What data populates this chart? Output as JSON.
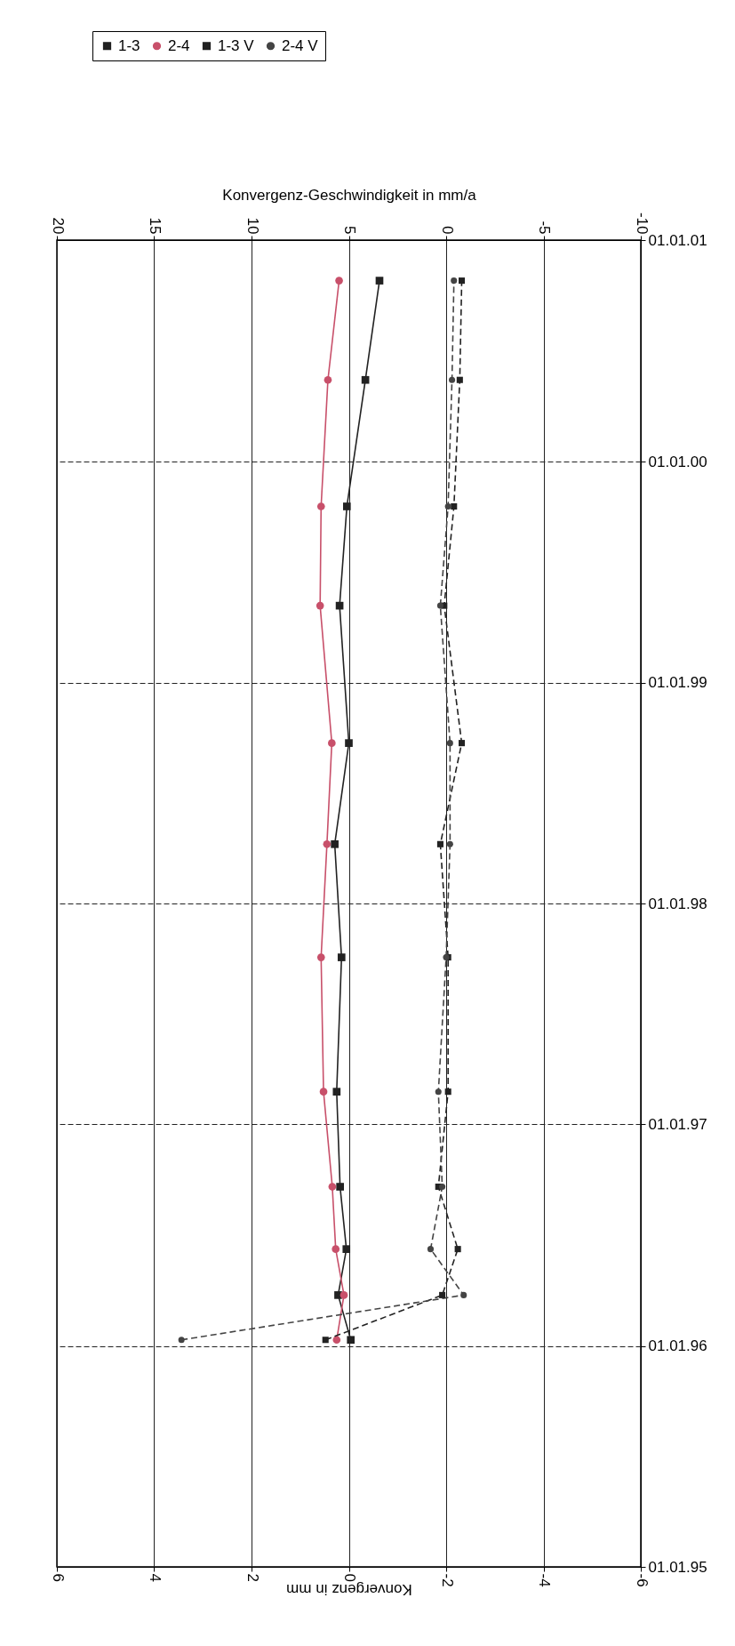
{
  "chart_data": {
    "type": "line",
    "orientation": "horizontal",
    "xlabel": "Konvergenz in mm",
    "x2label": "Konvergenz-Geschwindigkeit in mm/a",
    "x": [
      "1996-01-11",
      "1996-03-25",
      "1996-06-09",
      "1996-09-20",
      "1997-02-24",
      "1997-10-04",
      "1998-04-09",
      "1998-09-23",
      "1999-05-08",
      "1999-10-19",
      "2000-05-15",
      "2000-10-26"
    ],
    "series": [
      {
        "name": "1-3",
        "color": "#222222",
        "marker": "square",
        "line_style": "solid",
        "values": [
          -0.04,
          0.22,
          0.05,
          0.18,
          0.25,
          0.15,
          0.29,
          0.0,
          0.19,
          0.04,
          -0.34,
          -0.63
        ]
      },
      {
        "name": "2-4",
        "color": "#c8506a",
        "marker": "circle",
        "line_style": "solid",
        "values": [
          0.25,
          0.1,
          0.27,
          0.34,
          0.52,
          0.57,
          0.45,
          0.35,
          0.59,
          0.57,
          0.43,
          0.2
        ]
      },
      {
        "name": "1-3 V",
        "color": "#222222",
        "marker": "square",
        "line_style": "dashed",
        "axis": "x2",
        "values": [
          6.2,
          0.2,
          -0.6,
          0.4,
          -0.1,
          -0.1,
          0.3,
          -0.8,
          0.1,
          -0.4,
          -0.7,
          -0.8
        ]
      },
      {
        "name": "2-4 V",
        "color": "#444444",
        "marker": "circle",
        "line_style": "dashed",
        "axis": "x2",
        "values": [
          13.6,
          -0.9,
          0.8,
          0.2,
          0.4,
          0.0,
          -0.2,
          -0.2,
          0.3,
          -0.1,
          -0.3,
          -0.4
        ]
      }
    ],
    "ylim": [
      "1995-01-01",
      "2001-01-01"
    ],
    "yticks": [
      {
        "value": "1995-01-01",
        "label": "01.01.95"
      },
      {
        "value": "1996-01-01",
        "label": "01.01.96"
      },
      {
        "value": "1997-01-01",
        "label": "01.01.97"
      },
      {
        "value": "1998-01-01",
        "label": "01.01.98"
      },
      {
        "value": "1999-01-01",
        "label": "01.01.99"
      },
      {
        "value": "2000-01-01",
        "label": "01.01.00"
      },
      {
        "value": "2001-01-01",
        "label": "01.01.01"
      }
    ],
    "xlim": [
      6,
      -6
    ],
    "xticks": [
      6,
      4,
      2,
      0,
      -2,
      -4,
      -6
    ],
    "x2lim": [
      20,
      -10
    ],
    "x2ticks": [
      20,
      15,
      10,
      5,
      0,
      -5,
      -10
    ],
    "grid": true,
    "legend": "top left"
  }
}
